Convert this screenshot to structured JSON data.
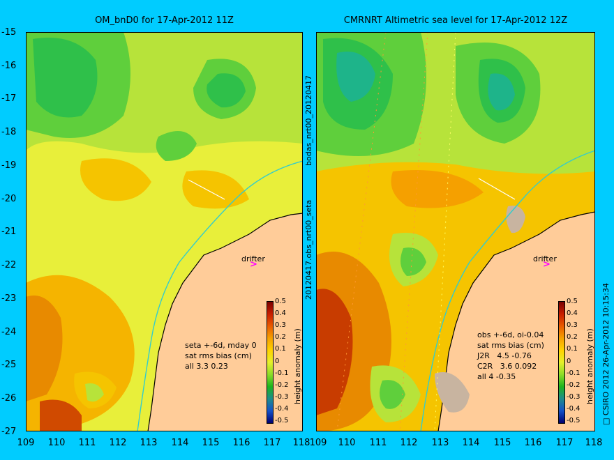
{
  "left_panel": {
    "title": "OM_bnD0 for 17-Apr-2012 11Z",
    "annotation": "seta +-6d, mday 0\nsat rms bias (cm)\nall 3.3 0.23",
    "drifter_label": "drifter",
    "colorbar_label": "height anomaly (m)"
  },
  "right_panel": {
    "title": "CMRNRT Altimetric sea level  for 17-Apr-2012 12Z",
    "annotation": "obs +-6d, oi-0.04\nsat rms bias (cm)\nJ2R   4.5 -0.76\nC2R   3.6 0.092\nall 4 -0.35",
    "drifter_label": "drifter",
    "colorbar_label": "height anomaly (m)"
  },
  "side_label_upper": "bodas_nrt00_20120417",
  "side_label_lower": "20120417.obs_nrt00_seta",
  "footer_label": "□ CSIRO 2012    26-Apr-2012 10:15:34",
  "y_ticks": [
    "-15",
    "-16",
    "-17",
    "-18",
    "-19",
    "-20",
    "-21",
    "-22",
    "-23",
    "-24",
    "-25",
    "-26",
    "-27"
  ],
  "x_ticks": [
    "109",
    "110",
    "111",
    "112",
    "113",
    "114",
    "115",
    "116",
    "117",
    "118"
  ],
  "colorbar_ticks": [
    "0.5",
    "0.4",
    "0.3",
    "0.2",
    "0.1",
    "0",
    "-0.1",
    "-0.2",
    "-0.3",
    "-0.4",
    "-0.5"
  ],
  "colors": {
    "background": "#00ccff",
    "land": "#ffcc99",
    "coastline_track": "#33cccc",
    "drifter_arrow": "#ff00ff"
  }
}
